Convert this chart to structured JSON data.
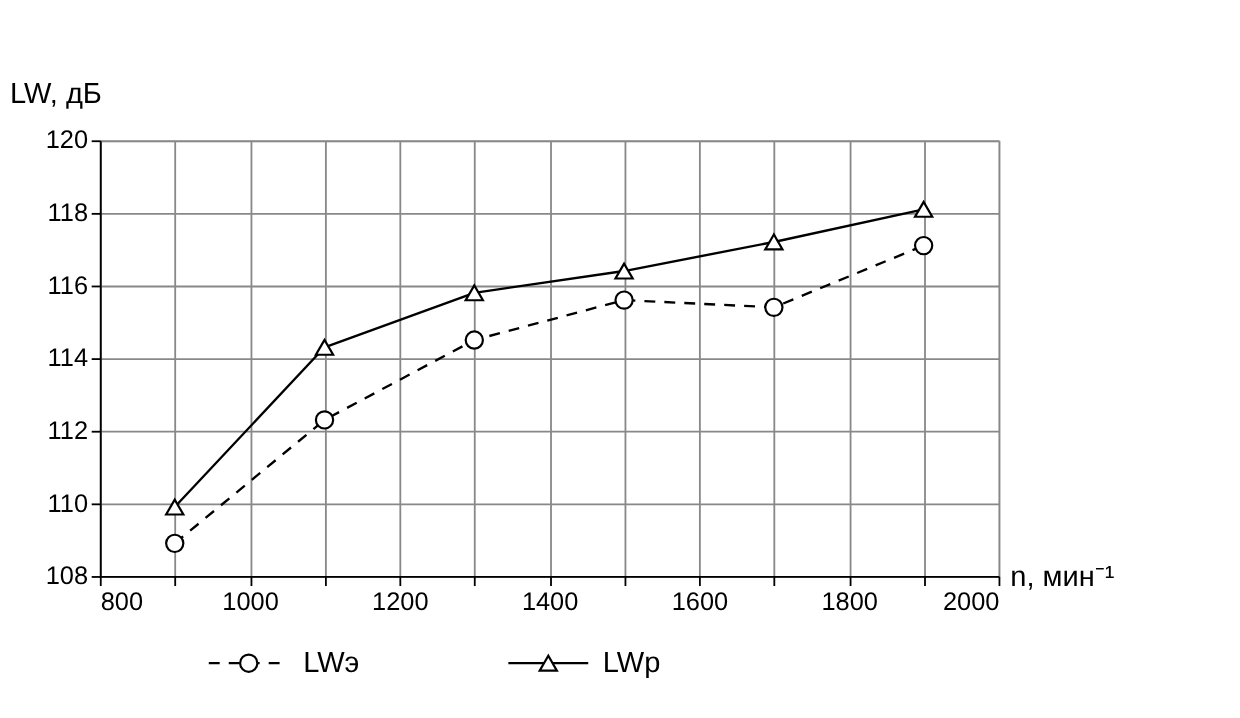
{
  "chart_data": {
    "type": "line",
    "ylabel": "LW, дБ",
    "xlabel": "n, мин⁻¹",
    "x": [
      900,
      1100,
      1300,
      1500,
      1700,
      1900
    ],
    "series": [
      {
        "name": "LWэ",
        "color": "#000000",
        "marker": "circle",
        "line_style": "dashed",
        "values": [
          108.9,
          112.3,
          114.5,
          115.6,
          115.4,
          117.1
        ]
      },
      {
        "name": "LWр",
        "color": "#000000",
        "marker": "triangle",
        "line_style": "solid",
        "values": [
          109.9,
          114.3,
          115.8,
          116.4,
          117.2,
          118.1
        ]
      }
    ],
    "xlim": [
      800,
      2000
    ],
    "xticks": [
      800,
      {
        "value": 900,
        "label": null
      },
      1000,
      {
        "value": 1100,
        "label": null
      },
      1200,
      {
        "value": 1300,
        "label": null
      },
      1400,
      {
        "value": 1500,
        "label": null
      },
      1600,
      {
        "value": 1700,
        "label": null
      },
      1800,
      {
        "value": 1900,
        "label": null
      },
      2000
    ],
    "ylim": [
      108,
      120
    ],
    "yticks": [
      108,
      110,
      112,
      114,
      116,
      118,
      120
    ],
    "grid": true,
    "legend": "bottom"
  }
}
